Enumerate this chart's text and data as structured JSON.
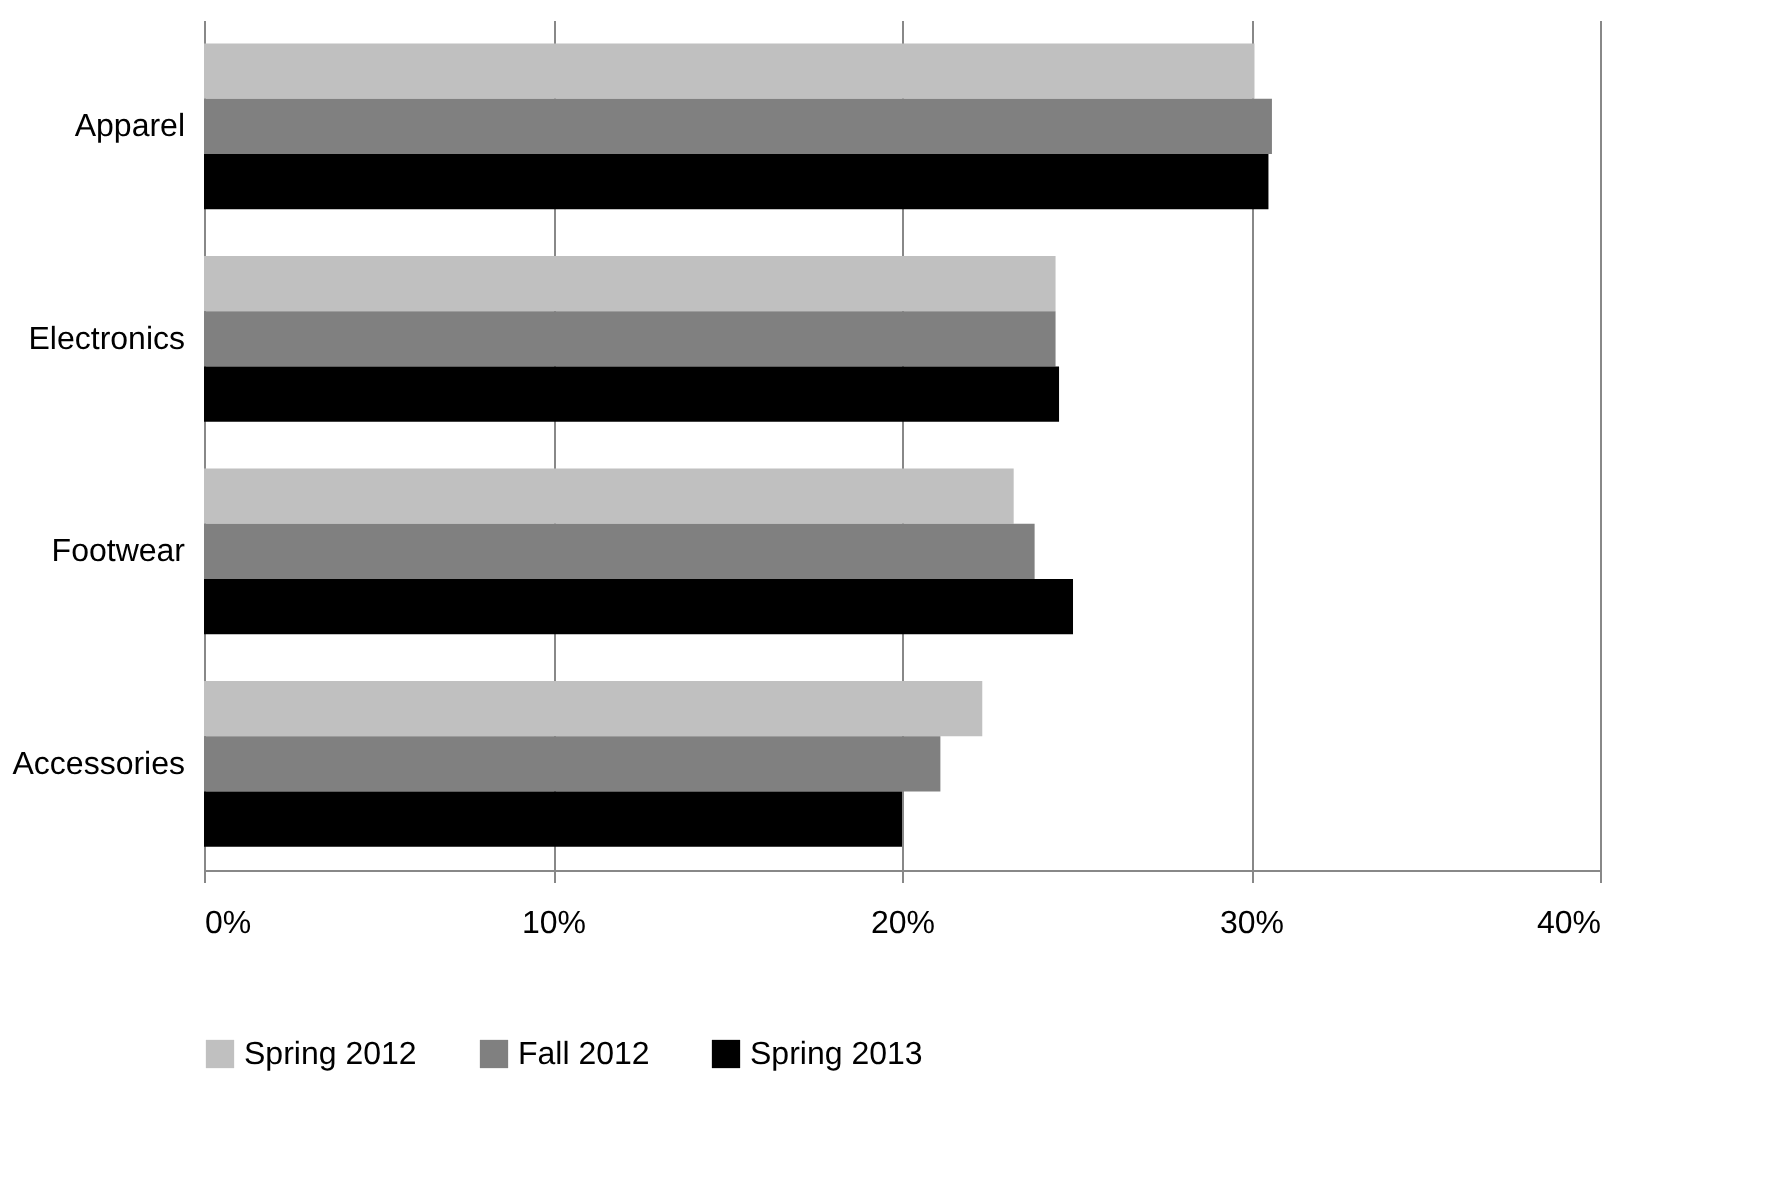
{
  "chart_data": {
    "type": "bar",
    "orientation": "horizontal",
    "categories": [
      "Apparel",
      "Electronics",
      "Footwear",
      "Accessories"
    ],
    "series": [
      {
        "name": "Spring 2012",
        "color": "#c0c0c0",
        "values": [
          30.1,
          24.4,
          23.2,
          22.3
        ]
      },
      {
        "name": "Fall 2012",
        "color": "#808080",
        "values": [
          30.6,
          24.4,
          23.8,
          21.1
        ]
      },
      {
        "name": "Spring 2013",
        "color": "#000000",
        "values": [
          30.5,
          24.5,
          24.9,
          20.0
        ]
      }
    ],
    "xlim": [
      0,
      40
    ],
    "xticks": [
      {
        "value": 0,
        "label": "0%"
      },
      {
        "value": 10,
        "label": "10%"
      },
      {
        "value": 20,
        "label": "20%"
      },
      {
        "value": 30,
        "label": "30%"
      },
      {
        "value": 40,
        "label": "40%"
      }
    ],
    "grid": "x",
    "legend": "bottom"
  }
}
